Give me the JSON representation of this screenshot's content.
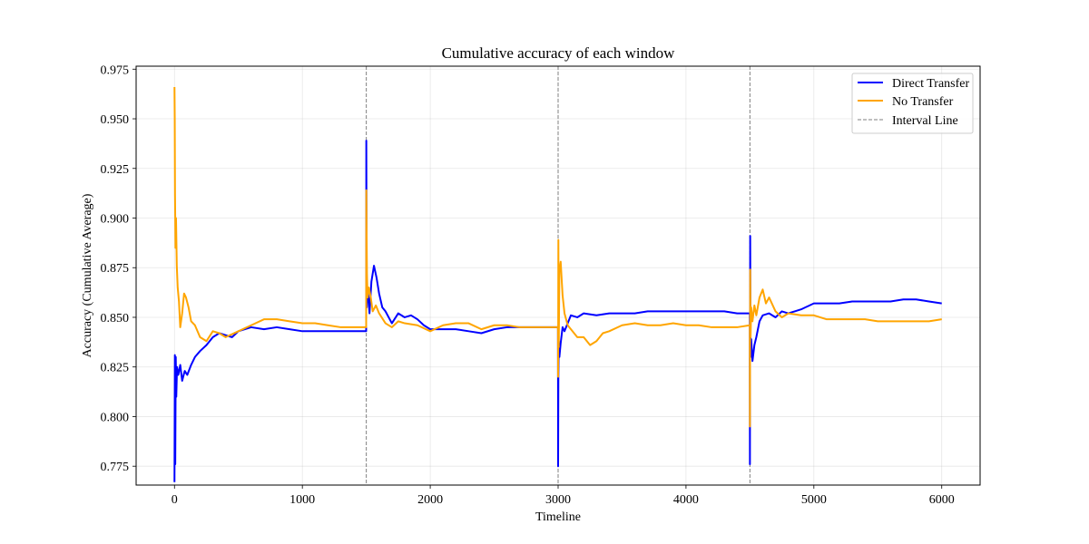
{
  "chart_data": {
    "type": "line",
    "title": "Cumulative accuracy of each window",
    "xlabel": "Timeline",
    "ylabel": "Accuracy (Cumulative Average)",
    "xlim": [
      -300,
      6300
    ],
    "ylim": [
      0.7655,
      0.9765
    ],
    "xticks": [
      0,
      1000,
      2000,
      3000,
      4000,
      5000,
      6000
    ],
    "xtick_labels": [
      "0",
      "1000",
      "2000",
      "3000",
      "4000",
      "5000",
      "6000"
    ],
    "yticks": [
      0.775,
      0.8,
      0.825,
      0.85,
      0.875,
      0.9,
      0.925,
      0.95,
      0.975
    ],
    "ytick_labels": [
      "0.775",
      "0.800",
      "0.825",
      "0.850",
      "0.875",
      "0.900",
      "0.925",
      "0.950",
      "0.975"
    ],
    "grid": true,
    "legend_position": "top-right",
    "interval_lines": {
      "name": "Interval Line",
      "x": [
        1500,
        3000,
        4500
      ],
      "color": "#808080"
    },
    "series": [
      {
        "name": "Direct Transfer",
        "color": "#0000ff",
        "x": [
          0,
          3,
          6,
          10,
          14,
          20,
          30,
          45,
          60,
          80,
          100,
          130,
          160,
          200,
          250,
          300,
          350,
          400,
          450,
          500,
          600,
          700,
          800,
          900,
          1000,
          1100,
          1200,
          1300,
          1400,
          1499,
          1500,
          1502,
          1504,
          1508,
          1515,
          1525,
          1540,
          1560,
          1580,
          1600,
          1625,
          1650,
          1700,
          1750,
          1800,
          1850,
          1900,
          1950,
          2000,
          2100,
          2200,
          2300,
          2400,
          2500,
          2600,
          2700,
          2800,
          2900,
          2999,
          3000,
          3002,
          3005,
          3010,
          3020,
          3035,
          3050,
          3075,
          3100,
          3150,
          3200,
          3300,
          3400,
          3500,
          3600,
          3700,
          3800,
          3900,
          4000,
          4100,
          4200,
          4300,
          4400,
          4499,
          4500,
          4502,
          4505,
          4510,
          4520,
          4535,
          4550,
          4575,
          4600,
          4650,
          4700,
          4750,
          4800,
          4850,
          4900,
          5000,
          5100,
          5200,
          5300,
          5400,
          5500,
          5600,
          5700,
          5800,
          5900,
          6000
        ],
        "values": [
          0.767,
          0.831,
          0.776,
          0.83,
          0.81,
          0.825,
          0.821,
          0.826,
          0.818,
          0.823,
          0.821,
          0.826,
          0.83,
          0.833,
          0.836,
          0.84,
          0.842,
          0.841,
          0.84,
          0.843,
          0.845,
          0.844,
          0.845,
          0.844,
          0.843,
          0.843,
          0.843,
          0.843,
          0.843,
          0.843,
          0.939,
          0.882,
          0.855,
          0.865,
          0.862,
          0.852,
          0.868,
          0.876,
          0.87,
          0.862,
          0.855,
          0.853,
          0.847,
          0.852,
          0.85,
          0.851,
          0.849,
          0.846,
          0.844,
          0.844,
          0.844,
          0.843,
          0.842,
          0.844,
          0.845,
          0.845,
          0.845,
          0.845,
          0.845,
          0.775,
          0.82,
          0.838,
          0.83,
          0.837,
          0.845,
          0.843,
          0.847,
          0.851,
          0.85,
          0.852,
          0.851,
          0.852,
          0.852,
          0.852,
          0.853,
          0.853,
          0.853,
          0.853,
          0.853,
          0.853,
          0.853,
          0.852,
          0.852,
          0.776,
          0.891,
          0.83,
          0.839,
          0.828,
          0.836,
          0.84,
          0.848,
          0.851,
          0.852,
          0.85,
          0.853,
          0.852,
          0.853,
          0.854,
          0.857,
          0.857,
          0.857,
          0.858,
          0.858,
          0.858,
          0.858,
          0.859,
          0.859,
          0.858,
          0.857
        ]
      },
      {
        "name": "No Transfer",
        "color": "#ffa500",
        "x": [
          0,
          2,
          4,
          8,
          12,
          18,
          25,
          35,
          45,
          60,
          75,
          90,
          110,
          130,
          160,
          200,
          250,
          300,
          350,
          400,
          500,
          600,
          700,
          800,
          900,
          1000,
          1100,
          1200,
          1300,
          1400,
          1499,
          1500,
          1502,
          1505,
          1510,
          1520,
          1535,
          1550,
          1575,
          1600,
          1650,
          1700,
          1750,
          1800,
          1900,
          2000,
          2100,
          2200,
          2300,
          2400,
          2500,
          2600,
          2700,
          2800,
          2900,
          2999,
          3000,
          3002,
          3005,
          3010,
          3020,
          3035,
          3050,
          3075,
          3100,
          3150,
          3200,
          3250,
          3300,
          3350,
          3400,
          3500,
          3600,
          3700,
          3800,
          3900,
          4000,
          4100,
          4200,
          4300,
          4400,
          4499,
          4500,
          4502,
          4505,
          4510,
          4520,
          4535,
          4550,
          4575,
          4600,
          4625,
          4650,
          4700,
          4750,
          4800,
          4900,
          5000,
          5100,
          5200,
          5300,
          5400,
          5500,
          5600,
          5700,
          5800,
          5900,
          6000
        ],
        "values": [
          0.966,
          0.95,
          0.912,
          0.885,
          0.9,
          0.876,
          0.865,
          0.858,
          0.845,
          0.852,
          0.862,
          0.86,
          0.855,
          0.848,
          0.846,
          0.84,
          0.838,
          0.843,
          0.842,
          0.84,
          0.843,
          0.846,
          0.849,
          0.849,
          0.848,
          0.847,
          0.847,
          0.846,
          0.845,
          0.845,
          0.845,
          0.914,
          0.896,
          0.872,
          0.86,
          0.865,
          0.86,
          0.853,
          0.856,
          0.852,
          0.847,
          0.845,
          0.848,
          0.847,
          0.846,
          0.843,
          0.846,
          0.847,
          0.847,
          0.844,
          0.846,
          0.846,
          0.845,
          0.845,
          0.845,
          0.845,
          0.82,
          0.889,
          0.835,
          0.873,
          0.878,
          0.861,
          0.852,
          0.846,
          0.844,
          0.84,
          0.84,
          0.836,
          0.838,
          0.842,
          0.843,
          0.846,
          0.847,
          0.846,
          0.846,
          0.847,
          0.846,
          0.846,
          0.845,
          0.845,
          0.845,
          0.846,
          0.795,
          0.874,
          0.84,
          0.855,
          0.848,
          0.856,
          0.851,
          0.86,
          0.864,
          0.857,
          0.86,
          0.853,
          0.85,
          0.852,
          0.851,
          0.851,
          0.849,
          0.849,
          0.849,
          0.849,
          0.848,
          0.848,
          0.848,
          0.848,
          0.848,
          0.849
        ]
      }
    ]
  }
}
